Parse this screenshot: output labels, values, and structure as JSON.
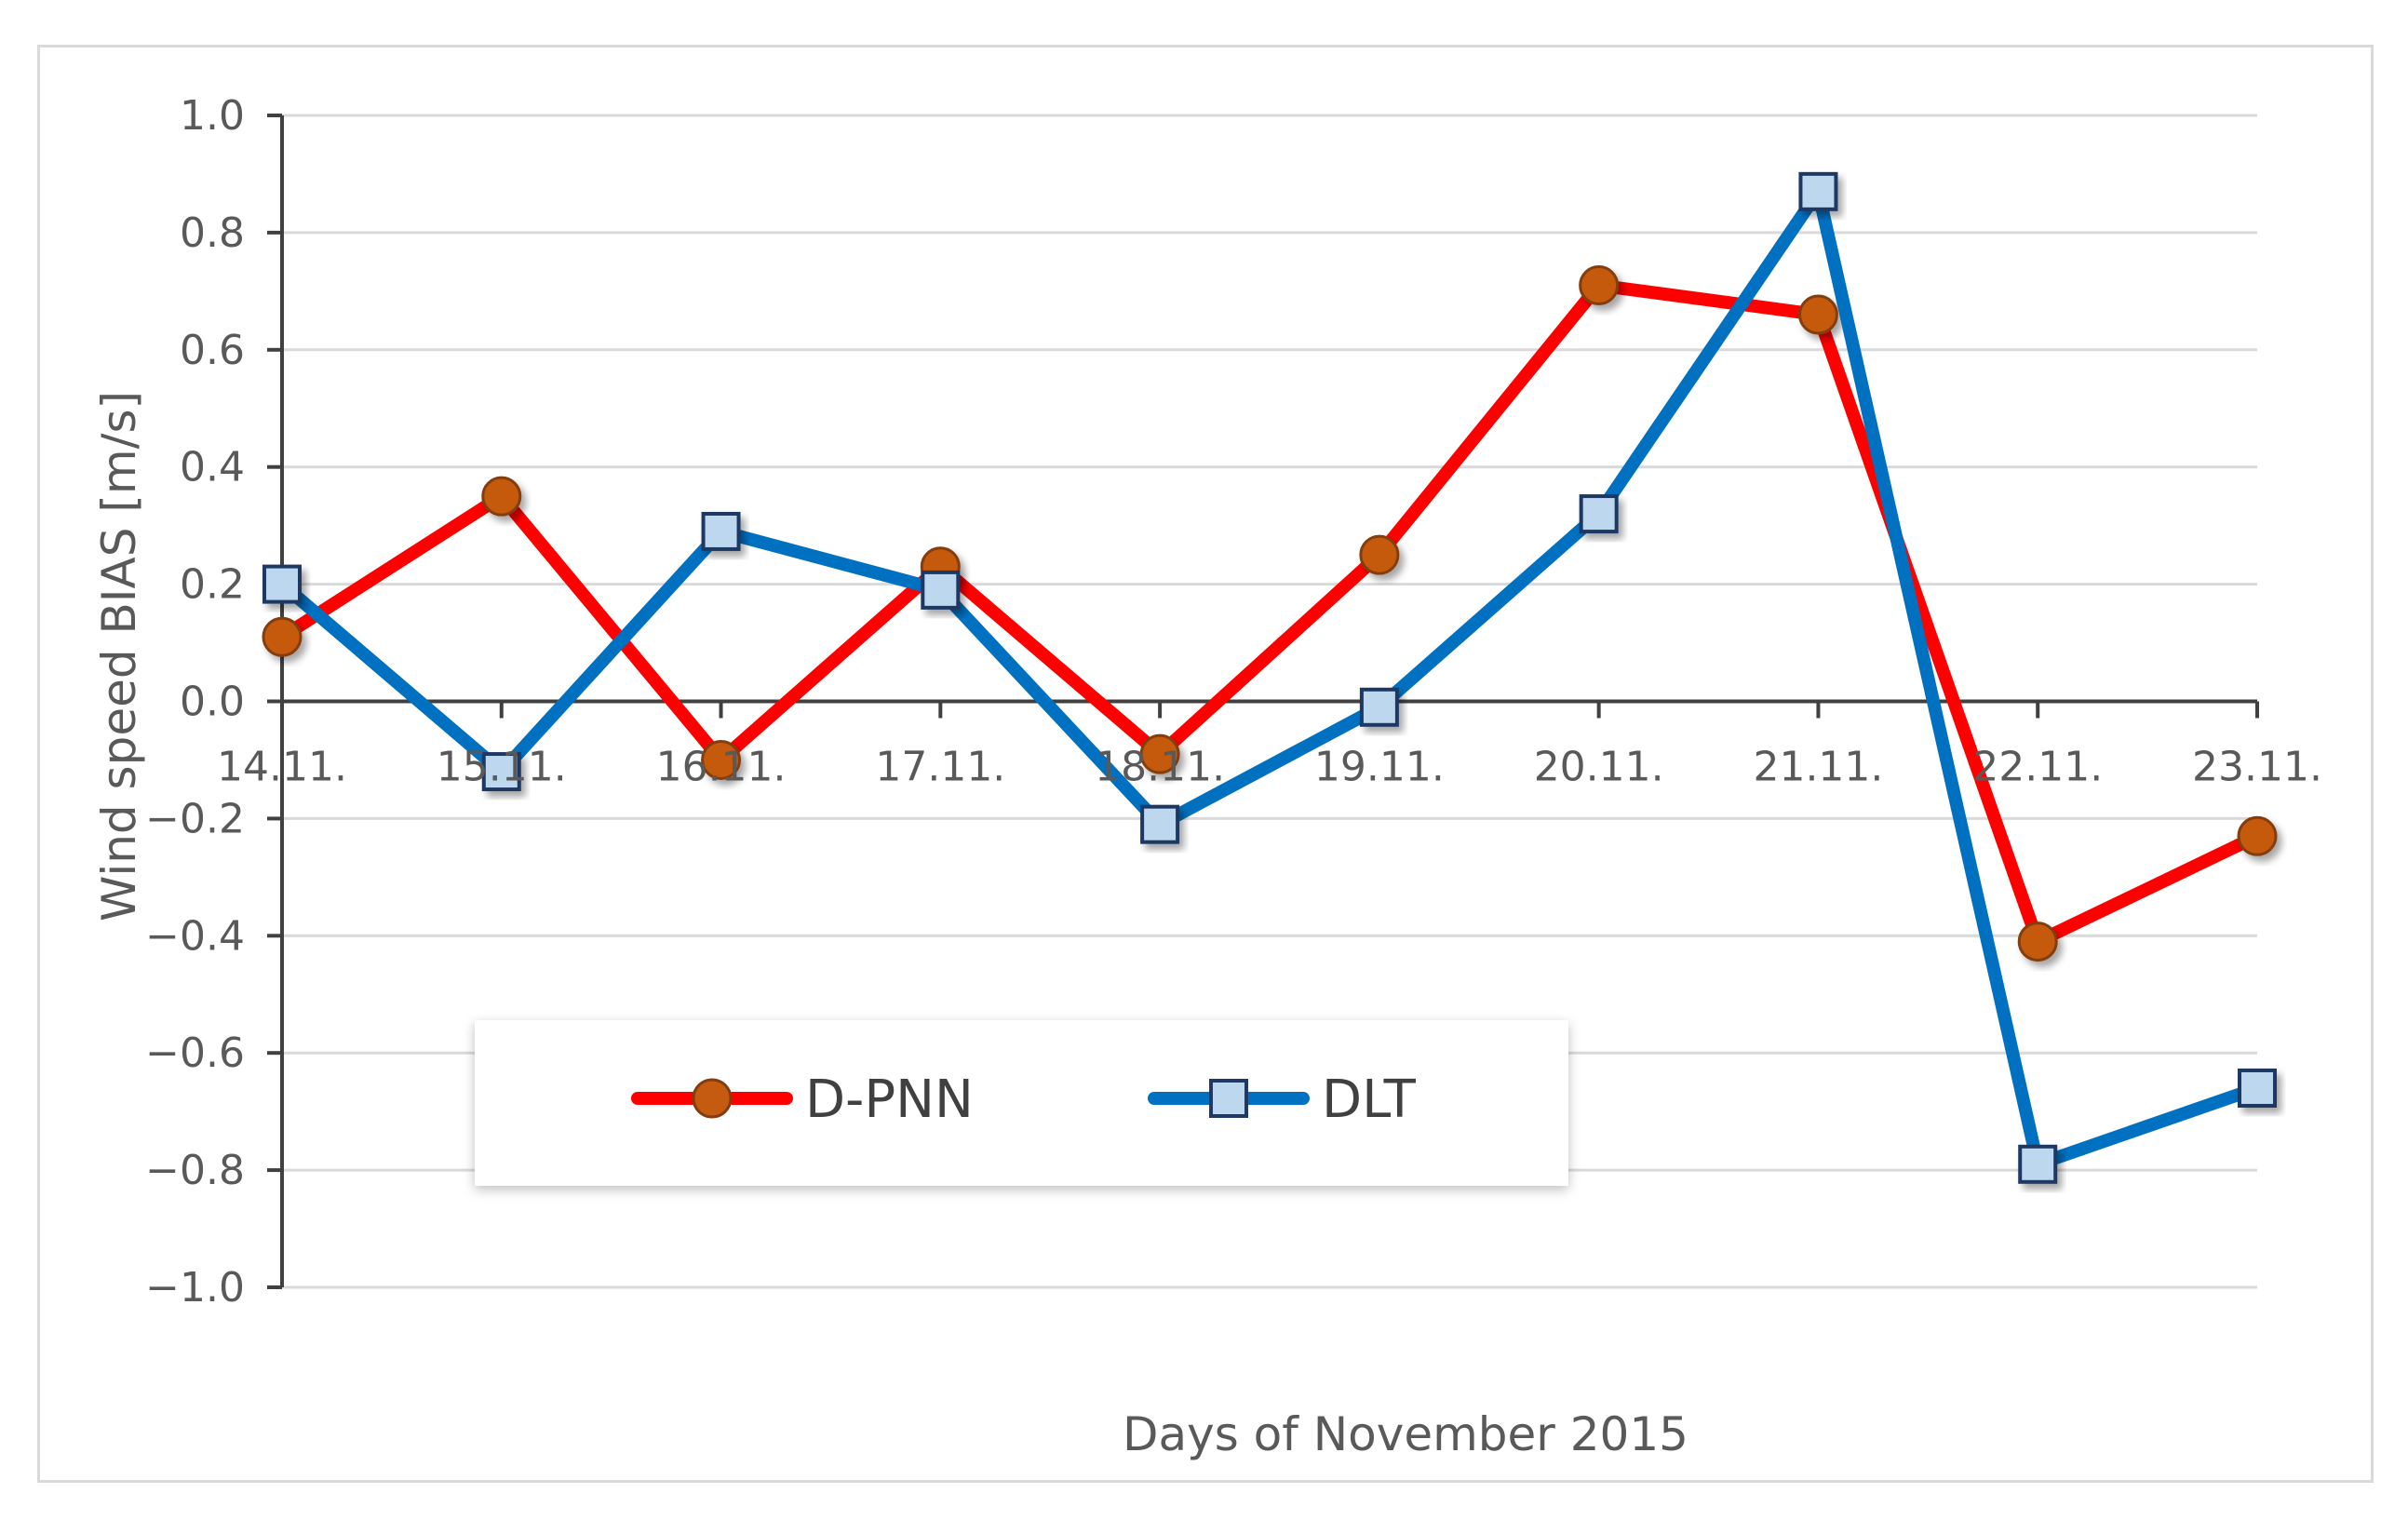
{
  "chart_data": {
    "type": "line",
    "title": "",
    "xlabel": "Days of November 2015",
    "ylabel": "Wind speed BIAS [m/s]",
    "categories": [
      "14.11.",
      "15.11.",
      "16.11.",
      "17.11.",
      "18.11.",
      "19.11.",
      "20.11.",
      "21.11.",
      "22.11.",
      "23.11."
    ],
    "ylim": [
      -1.0,
      1.0
    ],
    "yticks": [
      "1.0",
      "0.8",
      "0.6",
      "0.4",
      "0.2",
      "0.0",
      "−0.2",
      "−0.4",
      "−0.6",
      "−0.8",
      "−1.0"
    ],
    "ytick_values": [
      1.0,
      0.8,
      0.6,
      0.4,
      0.2,
      0.0,
      -0.2,
      -0.4,
      -0.6,
      -0.8,
      -1.0
    ],
    "grid": true,
    "legend_position": "bottom-left",
    "series": [
      {
        "name": "D-PNN",
        "color": "#ff0000",
        "marker": "circle",
        "marker_color": "#c55a11",
        "values": [
          0.11,
          0.35,
          -0.1,
          0.23,
          -0.09,
          0.25,
          0.71,
          0.66,
          -0.41,
          -0.23
        ]
      },
      {
        "name": "DLT",
        "color": "#0070c0",
        "marker": "square",
        "marker_color": "#bdd7ee",
        "values": [
          0.2,
          -0.12,
          0.29,
          0.19,
          -0.21,
          -0.01,
          0.32,
          0.87,
          -0.79,
          -0.66
        ]
      }
    ]
  }
}
